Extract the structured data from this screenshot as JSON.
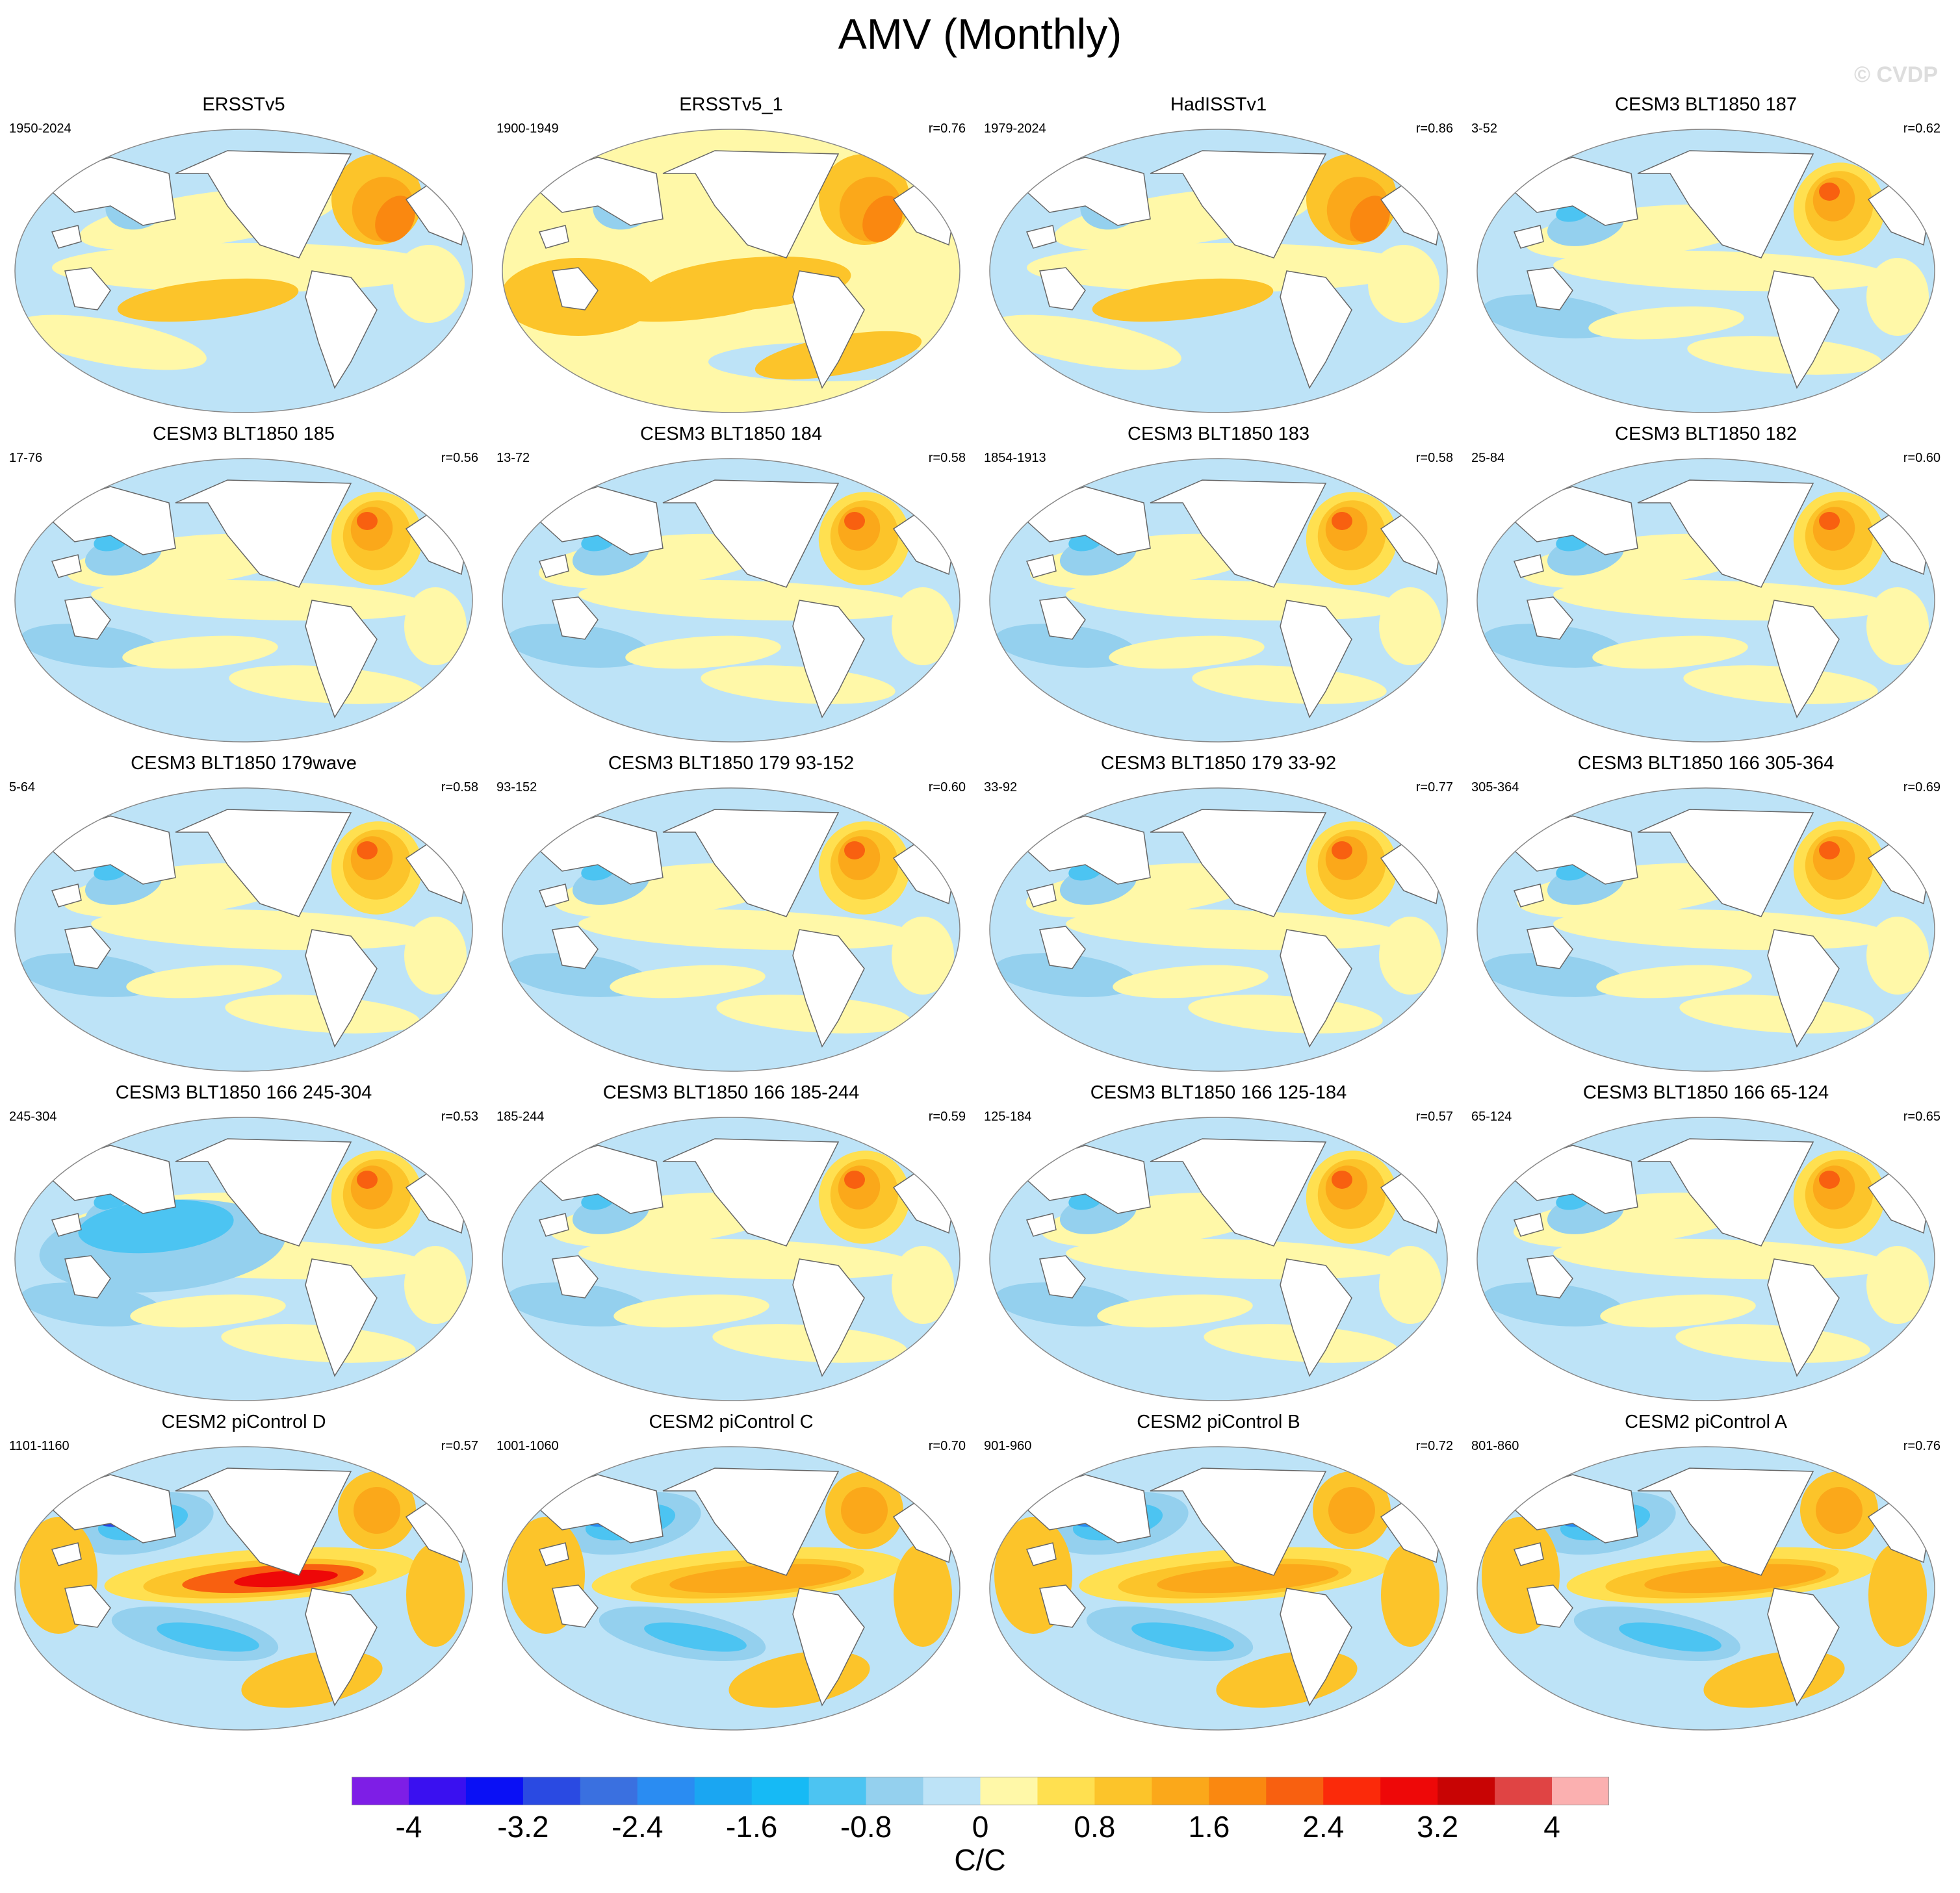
{
  "title": "AMV (Monthly)",
  "watermark": "© CVDP",
  "panels": [
    {
      "name": "ERSSTv5",
      "years": "1950-2024",
      "corr": "",
      "pattern": "obs"
    },
    {
      "name": "ERSSTv5_1",
      "years": "1900-1949",
      "corr": "r=0.76",
      "pattern": "obs1"
    },
    {
      "name": "HadISSTv1",
      "years": "1979-2024",
      "corr": "r=0.86",
      "pattern": "obs"
    },
    {
      "name": "CESM3 BLT1850 187",
      "years": "3-52",
      "corr": "r=0.62",
      "pattern": "model"
    },
    {
      "name": "CESM3 BLT1850 185",
      "years": "17-76",
      "corr": "r=0.56",
      "pattern": "model"
    },
    {
      "name": "CESM3 BLT1850 184",
      "years": "13-72",
      "corr": "r=0.58",
      "pattern": "model"
    },
    {
      "name": "CESM3 BLT1850 183",
      "years": "1854-1913",
      "corr": "r=0.58",
      "pattern": "model"
    },
    {
      "name": "CESM3 BLT1850 182",
      "years": "25-84",
      "corr": "r=0.60",
      "pattern": "model"
    },
    {
      "name": "CESM3 BLT1850 179wave",
      "years": "5-64",
      "corr": "r=0.58",
      "pattern": "model"
    },
    {
      "name": "CESM3 BLT1850 179 93-152",
      "years": "93-152",
      "corr": "r=0.60",
      "pattern": "model"
    },
    {
      "name": "CESM3 BLT1850 179 33-92",
      "years": "33-92",
      "corr": "r=0.77",
      "pattern": "model"
    },
    {
      "name": "CESM3 BLT1850 166 305-364",
      "years": "305-364",
      "corr": "r=0.69",
      "pattern": "model"
    },
    {
      "name": "CESM3 BLT1850 166 245-304",
      "years": "245-304",
      "corr": "r=0.53",
      "pattern": "modelcold"
    },
    {
      "name": "CESM3 BLT1850 166 185-244",
      "years": "185-244",
      "corr": "r=0.59",
      "pattern": "model"
    },
    {
      "name": "CESM3 BLT1850 166 125-184",
      "years": "125-184",
      "corr": "r=0.57",
      "pattern": "model"
    },
    {
      "name": "CESM3 BLT1850 166 65-124",
      "years": "65-124",
      "corr": "r=0.65",
      "pattern": "model"
    },
    {
      "name": "CESM2 piControl D",
      "years": "1101-1160",
      "corr": "r=0.57",
      "pattern": "cesm2strong"
    },
    {
      "name": "CESM2 piControl C",
      "years": "1001-1060",
      "corr": "r=0.70",
      "pattern": "cesm2"
    },
    {
      "name": "CESM2 piControl B",
      "years": "901-960",
      "corr": "r=0.72",
      "pattern": "cesm2"
    },
    {
      "name": "CESM2 piControl A",
      "years": "801-860",
      "corr": "r=0.76",
      "pattern": "cesm2"
    }
  ],
  "colorbar": {
    "colors": [
      "#7e1ee6",
      "#3a10f0",
      "#0a10f5",
      "#2a4ae2",
      "#3a70e0",
      "#2a8cf2",
      "#1aa6f2",
      "#16baf5",
      "#4cc4f2",
      "#94d0ee",
      "#bde3f7",
      "#fff8a8",
      "#ffe050",
      "#fcc42a",
      "#fba81a",
      "#fa8810",
      "#f86010",
      "#fb2a0a",
      "#ee0808",
      "#c80404",
      "#e04444",
      "#fbb0b0"
    ],
    "tick_labels": [
      "-4",
      "-3.2",
      "-2.4",
      "-1.6",
      "-0.8",
      "0",
      "0.8",
      "1.6",
      "2.4",
      "3.2",
      "4"
    ],
    "units": "C/C"
  }
}
